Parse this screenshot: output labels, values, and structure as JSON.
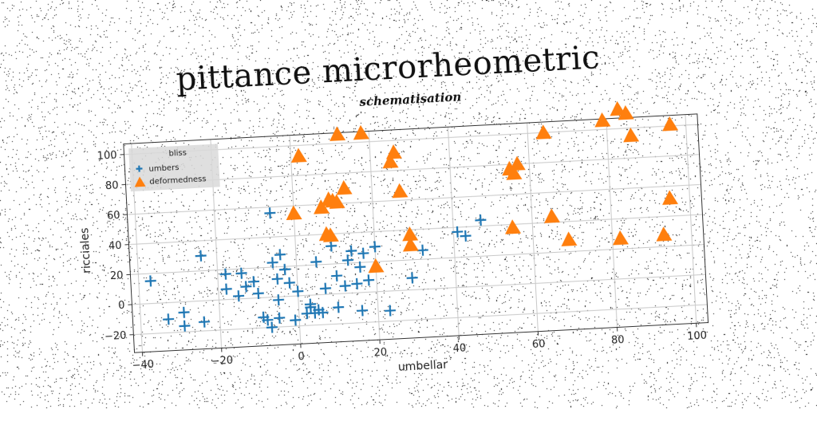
{
  "title": "pittance microrheometric",
  "chart_data": {
    "type": "scatter",
    "title": "schematisation",
    "xlabel": "umbellar",
    "ylabel": "ricciales",
    "xlim": [
      -42,
      103
    ],
    "ylim": [
      -32,
      107
    ],
    "xticks": [
      -40,
      -20,
      0,
      20,
      40,
      60,
      80,
      100
    ],
    "yticks": [
      -20,
      0,
      20,
      40,
      60,
      80,
      100
    ],
    "grid": true,
    "legend": {
      "title": "bliss",
      "position": "top-left"
    },
    "series": [
      {
        "name": "umbers",
        "marker": "plus",
        "color": "#1f77b4",
        "points": [
          [
            -37,
            15
          ],
          [
            -33,
            -11
          ],
          [
            -29,
            -7
          ],
          [
            -29,
            -16
          ],
          [
            -24,
            30
          ],
          [
            -24,
            -14
          ],
          [
            -18,
            17
          ],
          [
            -18,
            7
          ],
          [
            -15,
            2
          ],
          [
            -14,
            17
          ],
          [
            -13,
            8
          ],
          [
            -11,
            11
          ],
          [
            -10,
            3
          ],
          [
            -9,
            -13
          ],
          [
            -8,
            -15
          ],
          [
            -7,
            -20
          ],
          [
            -6,
            56
          ],
          [
            -6,
            23
          ],
          [
            -5,
            12
          ],
          [
            -5,
            -14
          ],
          [
            -5,
            -2
          ],
          [
            -4,
            28
          ],
          [
            -3,
            18
          ],
          [
            -2,
            9
          ],
          [
            -1,
            -16
          ],
          [
            0,
            3
          ],
          [
            2,
            -12
          ],
          [
            3,
            -8
          ],
          [
            3,
            -6
          ],
          [
            4,
            -12
          ],
          [
            5,
            22
          ],
          [
            5,
            -10
          ],
          [
            6,
            -12
          ],
          [
            7,
            4
          ],
          [
            9,
            32
          ],
          [
            10,
            12
          ],
          [
            10,
            -9
          ],
          [
            12,
            5
          ],
          [
            13,
            22
          ],
          [
            14,
            28
          ],
          [
            15,
            6
          ],
          [
            16,
            -12
          ],
          [
            16,
            17
          ],
          [
            17,
            26
          ],
          [
            18,
            8
          ],
          [
            20,
            30
          ],
          [
            23,
            -13
          ],
          [
            29,
            8
          ],
          [
            32,
            26
          ],
          [
            41,
            37
          ],
          [
            43,
            34
          ],
          [
            47,
            44
          ]
        ]
      },
      {
        "name": "deformedness",
        "marker": "triangle",
        "color": "#ff7f0e",
        "points": [
          [
            0,
            55
          ],
          [
            2,
            93
          ],
          [
            7,
            58
          ],
          [
            8,
            40
          ],
          [
            9,
            39
          ],
          [
            9,
            63
          ],
          [
            10,
            62
          ],
          [
            11,
            61
          ],
          [
            12,
            106
          ],
          [
            13,
            70
          ],
          [
            18,
            106
          ],
          [
            20,
            17
          ],
          [
            25,
            86
          ],
          [
            26,
            92
          ],
          [
            27,
            66
          ],
          [
            29,
            37
          ],
          [
            29,
            30
          ],
          [
            55,
            38
          ],
          [
            55,
            77
          ],
          [
            56,
            74
          ],
          [
            57,
            80
          ],
          [
            64,
            100
          ],
          [
            65,
            44
          ],
          [
            69,
            28
          ],
          [
            79,
            106
          ],
          [
            82,
            27
          ],
          [
            83,
            113
          ],
          [
            85,
            110
          ],
          [
            86,
            95
          ],
          [
            93,
            28
          ],
          [
            95,
            52
          ],
          [
            96,
            101
          ]
        ]
      }
    ]
  }
}
